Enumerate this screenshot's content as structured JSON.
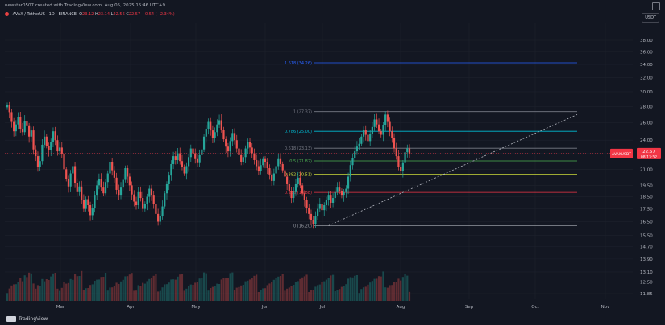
{
  "header": {
    "credit": "newstar0507 created with TradingView.com, Aug 05, 2025 15:46 UTC+9"
  },
  "legend": {
    "symbol": "AVAX / TetherUS · 1D · BINANCE",
    "o_label": "O",
    "o": "23.12",
    "h_label": "H",
    "h": "23.14",
    "l_label": "L",
    "l": "22.56",
    "c_label": "C",
    "c": "22.57",
    "chg": "−0.54 (−2.34%)"
  },
  "currency": "USDT",
  "footer": {
    "brand": "TradingView"
  },
  "price_tag": {
    "symbol": "AVAXUSDT",
    "price": "22.57",
    "countdown": "08:13:52"
  },
  "colors": {
    "up": "#26a69a",
    "down": "#ef5350",
    "bg": "#131722",
    "grid": "#1e222d",
    "tag": "#f23645"
  },
  "chart_data": {
    "type": "candlestick",
    "title": "AVAX / TetherUS · 1D · BINANCE",
    "y_scale": "log",
    "yticks": [
      38.0,
      36.0,
      34.0,
      32.0,
      30.0,
      28.0,
      26.0,
      24.0,
      22.57,
      21.0,
      19.5,
      18.5,
      17.5,
      16.5,
      15.5,
      14.7,
      13.9,
      13.1,
      12.5,
      11.85
    ],
    "x_labels": [
      "Mar",
      "Apr",
      "May",
      "Jun",
      "Jul",
      "Aug",
      "Sep",
      "Oct",
      "Nov"
    ],
    "fib_levels": [
      {
        "ratio": "1.618",
        "price": "34.26",
        "color": "#2962ff"
      },
      {
        "ratio": "1",
        "price": "27.37",
        "color": "#787b86"
      },
      {
        "ratio": "0.786",
        "price": "25.00",
        "color": "#00bcd4"
      },
      {
        "ratio": "0.618",
        "price": "23.13",
        "color": "#787b86"
      },
      {
        "ratio": "0.5",
        "price": "21.82",
        "color": "#4caf50"
      },
      {
        "ratio": "0.382",
        "price": "20.51",
        "color": "#cddc39"
      },
      {
        "ratio": "0.236",
        "price": "18.88",
        "color": "#f23645"
      },
      {
        "ratio": "0",
        "price": "16.20",
        "color": "#9598a1"
      }
    ],
    "trendline": {
      "from": [
        "Jun 22",
        16.2
      ],
      "to": [
        "Oct 15",
        27.0
      ],
      "style": "dashed"
    },
    "ohlc_approx": {
      "start": "Feb 2025",
      "closes": [
        28.2,
        27.3,
        26.1,
        25.0,
        25.8,
        26.7,
        25.3,
        24.9,
        26.2,
        25.6,
        24.4,
        25.1,
        23.0,
        22.3,
        21.2,
        21.8,
        23.5,
        24.4,
        23.4,
        22.9,
        23.8,
        25.0,
        24.0,
        22.8,
        23.2,
        22.5,
        21.0,
        20.1,
        19.4,
        20.6,
        21.3,
        19.7,
        18.9,
        19.4,
        18.2,
        17.5,
        18.3,
        17.8,
        17.0,
        17.6,
        18.6,
        19.5,
        20.1,
        19.3,
        18.8,
        19.8,
        20.6,
        21.7,
        20.9,
        20.2,
        19.1,
        18.6,
        19.3,
        20.0,
        21.1,
        20.3,
        19.5,
        18.7,
        18.1,
        17.8,
        18.9,
        18.4,
        17.5,
        17.9,
        18.5,
        19.2,
        18.6,
        17.9,
        17.1,
        16.5,
        16.9,
        17.7,
        18.8,
        19.6,
        20.4,
        21.5,
        22.3,
        21.9,
        22.6,
        21.8,
        21.2,
        20.6,
        21.3,
        22.2,
        23.1,
        22.6,
        22.0,
        21.6,
        22.4,
        23.0,
        24.4,
        25.3,
        26.1,
        25.1,
        24.2,
        24.9,
        25.8,
        26.3,
        25.2,
        24.1,
        23.3,
        22.8,
        23.9,
        24.8,
        24.0,
        23.1,
        22.4,
        21.7,
        22.2,
        23.1,
        23.8,
        23.2,
        22.6,
        21.9,
        21.3,
        20.8,
        21.4,
        22.0,
        21.7,
        21.1,
        20.5,
        19.9,
        20.6,
        21.3,
        22.0,
        21.5,
        20.9,
        20.3,
        19.6,
        19.0,
        18.4,
        18.9,
        19.6,
        20.2,
        19.5,
        18.8,
        18.2,
        17.6,
        17.1,
        16.6,
        16.3,
        16.9,
        17.5,
        17.9,
        17.4,
        17.8,
        18.2,
        18.6,
        18.0,
        18.4,
        18.9,
        19.3,
        19.0,
        18.6,
        18.9,
        19.2,
        20.3,
        21.4,
        22.1,
        22.8,
        23.3,
        23.6,
        24.4,
        25.2,
        24.6,
        23.9,
        24.7,
        25.5,
        26.4,
        25.8,
        25.0,
        24.6,
        25.7,
        27.0,
        26.1,
        25.0,
        24.2,
        23.1,
        22.3,
        21.2,
        20.8,
        21.6,
        22.7,
        23.1,
        22.57
      ]
    }
  }
}
